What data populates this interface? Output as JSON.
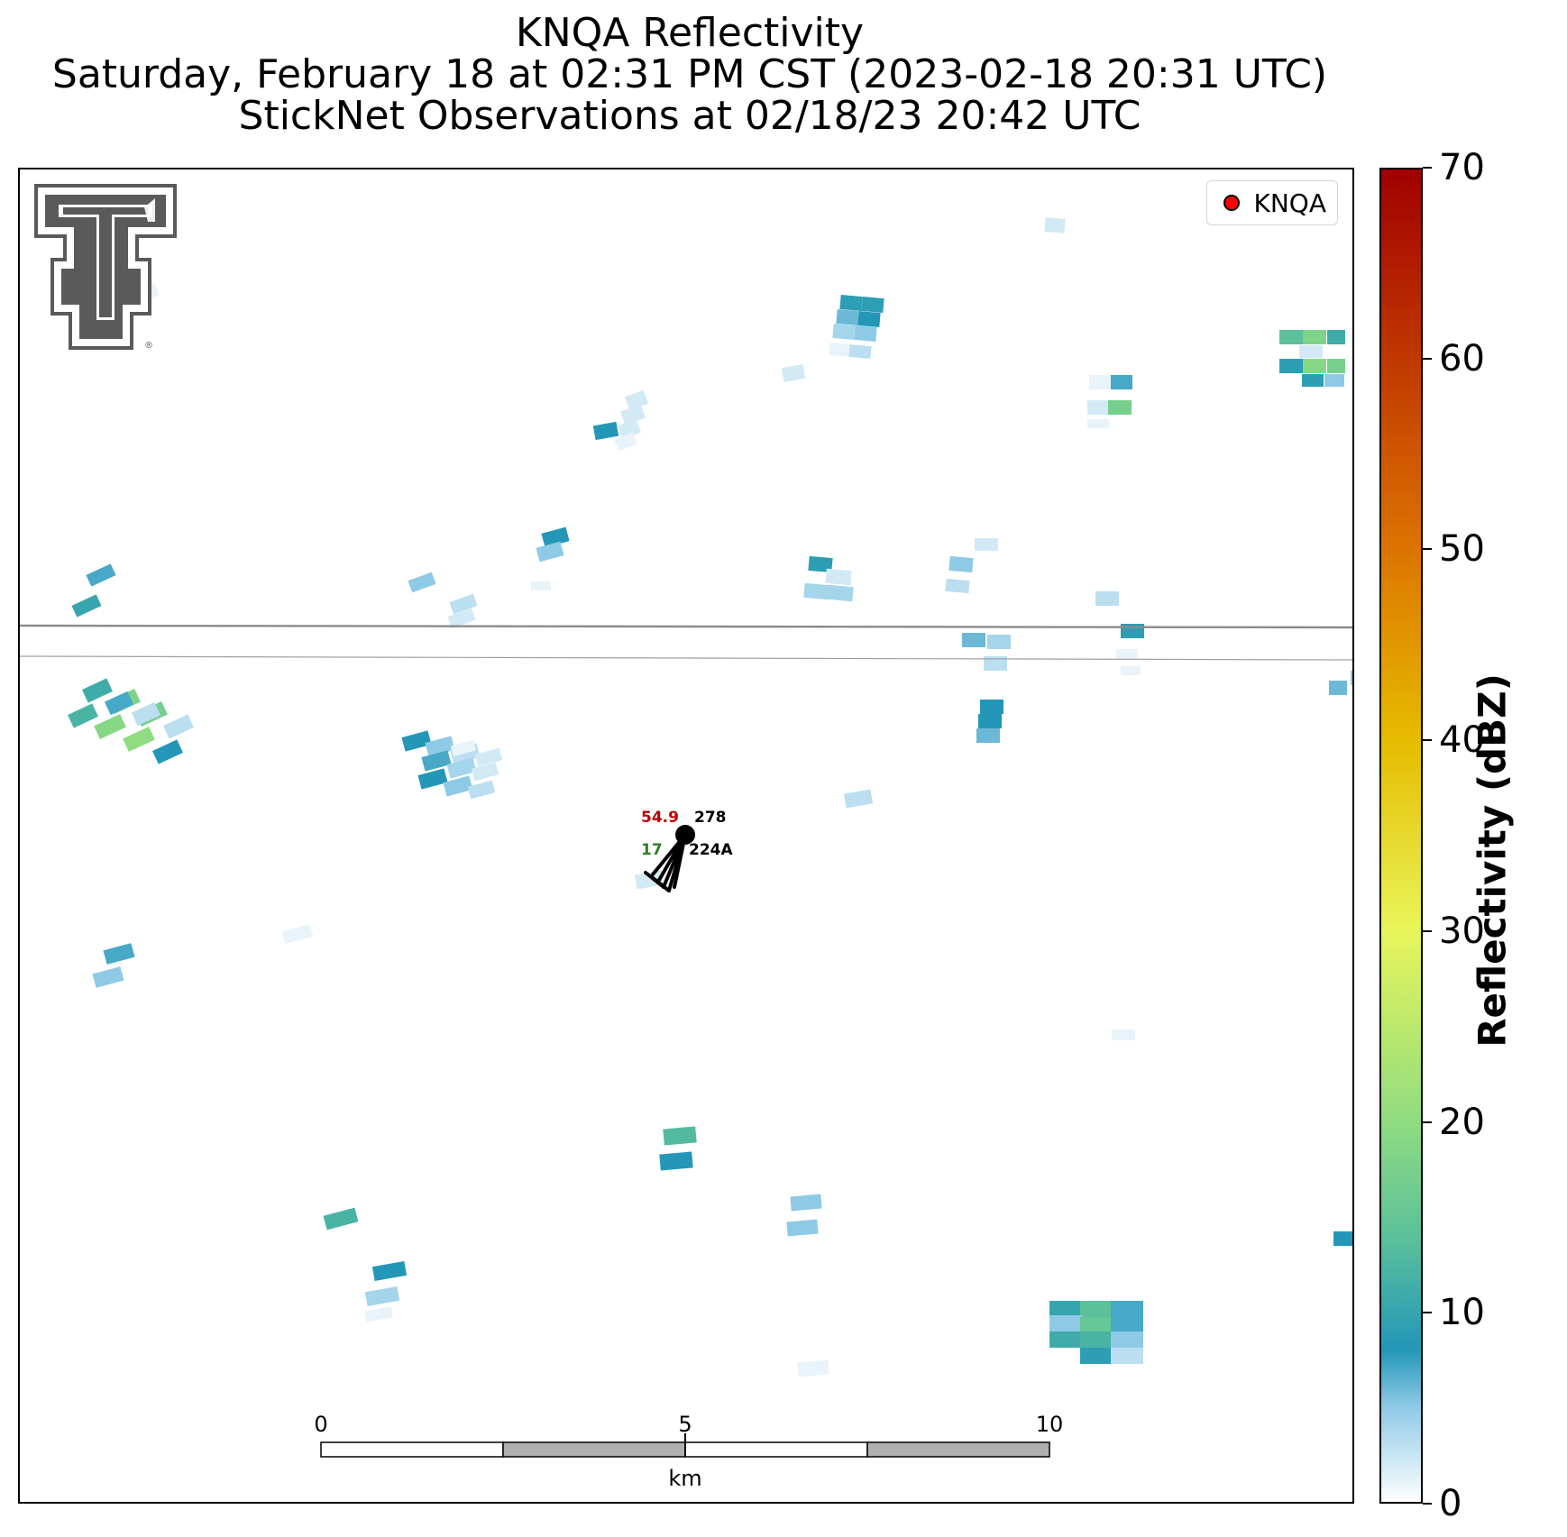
{
  "title": {
    "line1": "KNQA Reflectivity",
    "line2": "Saturday, February 18 at 02:31 PM CST (2023-02-18 20:31 UTC)",
    "line3": "StickNet Observations at 02/18/23 20:42 UTC"
  },
  "legend": {
    "label": "KNQA",
    "marker_color": "#ff0000"
  },
  "colorbar": {
    "label": "Reflectivity (dBZ)",
    "min": 0,
    "max": 70,
    "ticks": [
      "0",
      "10",
      "20",
      "30",
      "40",
      "50",
      "60",
      "70"
    ]
  },
  "scalebar": {
    "unit": "km",
    "ticks": [
      "0",
      "5",
      "10"
    ]
  },
  "station": {
    "id": "224A",
    "temperature": "54.9",
    "dewpoint": "17",
    "wind_direction": "278",
    "temperature_color": "#c00000",
    "dewpoint_color": "#2e7d1e"
  },
  "colormap": {
    "stops": [
      {
        "dbz": 0,
        "color": "#ffffff"
      },
      {
        "dbz": 5,
        "color": "#8ecae6"
      },
      {
        "dbz": 8,
        "color": "#2497b8"
      },
      {
        "dbz": 14,
        "color": "#5cc19a"
      },
      {
        "dbz": 20,
        "color": "#90dc80"
      },
      {
        "dbz": 30,
        "color": "#e8f55a"
      },
      {
        "dbz": 40,
        "color": "#e6bc00"
      },
      {
        "dbz": 50,
        "color": "#dc7400"
      },
      {
        "dbz": 60,
        "color": "#c03800"
      },
      {
        "dbz": 70,
        "color": "#a00000"
      }
    ]
  },
  "logo_name": "texas-tech-double-t-logo"
}
